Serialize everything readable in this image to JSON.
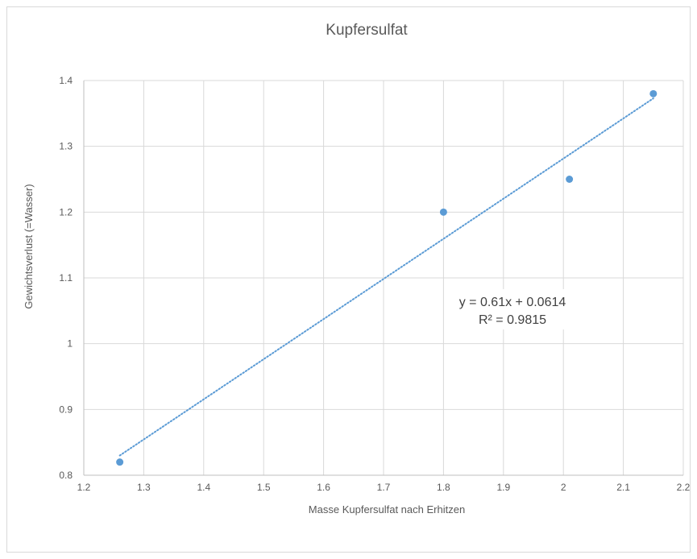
{
  "chart_data": {
    "type": "scatter",
    "title": "Kupfersulfat",
    "xlabel": "Masse Kupfersulfat nach Erhitzen",
    "ylabel": "Gewichtsverlust (=Wasser)",
    "xlim": [
      1.2,
      2.2
    ],
    "ylim": [
      0.8,
      1.4
    ],
    "x_ticks": [
      "1.2",
      "1.3",
      "1.4",
      "1.5",
      "1.6",
      "1.7",
      "1.8",
      "1.9",
      "2",
      "2.1",
      "2.2"
    ],
    "y_ticks": [
      "0.8",
      "0.9",
      "1",
      "1.1",
      "1.2",
      "1.3",
      "1.4"
    ],
    "grid": true,
    "series": [
      {
        "points": [
          {
            "x": 1.26,
            "y": 0.82
          },
          {
            "x": 1.8,
            "y": 1.2
          },
          {
            "x": 2.01,
            "y": 1.25
          },
          {
            "x": 2.15,
            "y": 1.38
          }
        ],
        "color": "#5b9bd5"
      }
    ],
    "trendline": {
      "type": "linear",
      "slope": 0.61,
      "intercept": 0.0614,
      "x_range": [
        1.26,
        2.15
      ],
      "style": "dotted",
      "color": "#5b9bd5",
      "equation": "y = 0.61x + 0.0614",
      "r_squared": "R² = 0.9815"
    },
    "colors": {
      "grid": "#d9d9d9",
      "text": "#595959"
    }
  }
}
